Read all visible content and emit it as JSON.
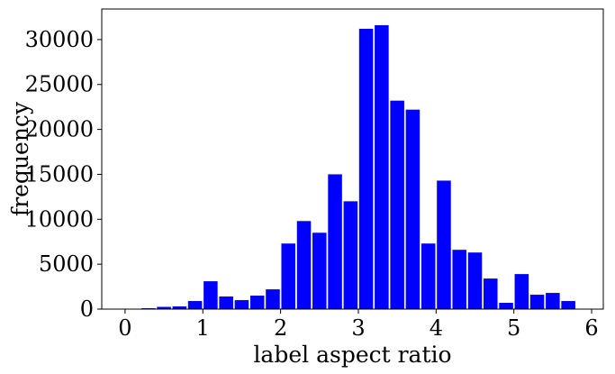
{
  "chart_data": {
    "type": "bar",
    "xlabel": "label aspect ratio",
    "ylabel": "frequency",
    "xlim": [
      -0.3,
      6.15
    ],
    "ylim": [
      0,
      33400
    ],
    "xticks": [
      0,
      1,
      2,
      3,
      4,
      5,
      6
    ],
    "yticks": [
      0,
      5000,
      10000,
      15000,
      20000,
      25000,
      30000
    ],
    "bar_width": 0.18,
    "bar_color": "#0000ff",
    "grid": false,
    "x": [
      0.1,
      0.3,
      0.5,
      0.7,
      0.9,
      1.1,
      1.3,
      1.5,
      1.7,
      1.9,
      2.1,
      2.3,
      2.5,
      2.7,
      2.9,
      3.1,
      3.3,
      3.5,
      3.7,
      3.9,
      4.1,
      4.3,
      4.5,
      4.7,
      4.9,
      5.1,
      5.3,
      5.5,
      5.7
    ],
    "values": [
      50,
      100,
      250,
      300,
      900,
      3100,
      1400,
      1000,
      1500,
      2200,
      7300,
      9800,
      8500,
      15000,
      12000,
      31200,
      31600,
      23200,
      22200,
      7300,
      14300,
      6600,
      6300,
      3400,
      700,
      3900,
      1600,
      1800,
      900
    ]
  }
}
